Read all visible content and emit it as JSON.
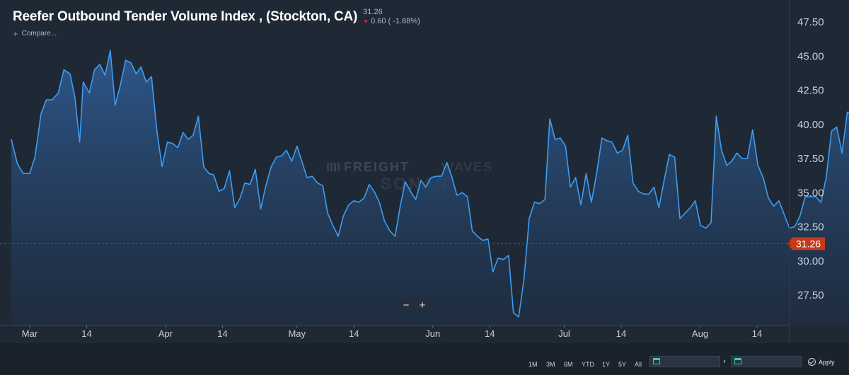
{
  "header": {
    "title": "Reefer Outbound Tender Volume Index , (Stockton, CA)",
    "last_value": "31.26",
    "change": "0.60 ( -1.88%)",
    "compare_label": "Compare..."
  },
  "watermark": {
    "line1_bold": "FREIGHT",
    "line1_light": "WAVES",
    "line2": "SONAR"
  },
  "zoom": {
    "minus": "−",
    "plus": "+"
  },
  "toolbar": {
    "ranges": [
      "1M",
      "3M",
      "6M",
      "YTD",
      "1Y",
      "5Y",
      "All"
    ],
    "arrow": "›",
    "apply_label": "Apply"
  },
  "colors": {
    "line": "#3d9df3",
    "last_price": "#c53a1a",
    "background": "#1f2936"
  },
  "chart_data": {
    "type": "area",
    "title": "Reefer Outbound Tender Volume Index , (Stockton, CA)",
    "xlabel": "",
    "ylabel": "",
    "ylim": [
      25.8,
      48.5
    ],
    "yticks": [
      27.5,
      30.0,
      32.5,
      35.0,
      37.5,
      40.0,
      42.5,
      45.0,
      47.5
    ],
    "ytick_labels": [
      "27.50",
      "30.00",
      "32.50",
      "35.00",
      "37.50",
      "40.00",
      "42.50",
      "45.00",
      "47.50"
    ],
    "x_ticks": [
      {
        "label": "Mar",
        "day": 1
      },
      {
        "label": "14",
        "day": 14
      },
      {
        "label": "Apr",
        "day": 32
      },
      {
        "label": "14",
        "day": 45
      },
      {
        "label": "May",
        "day": 62
      },
      {
        "label": "14",
        "day": 75
      },
      {
        "label": "Jun",
        "day": 93
      },
      {
        "label": "14",
        "day": 106
      },
      {
        "label": "Jul",
        "day": 123
      },
      {
        "label": "14",
        "day": 136
      },
      {
        "label": "Aug",
        "day": 154
      },
      {
        "label": "14",
        "day": 167
      }
    ],
    "last_value": 31.26,
    "last_value_label": "31.26",
    "grid": false,
    "series": [
      {
        "name": "Reefer Outbound Tender Volume Index",
        "points": [
          [
            -3.2,
            38.9
          ],
          [
            -1.8,
            37.1
          ],
          [
            -0.5,
            36.4
          ],
          [
            1,
            36.4
          ],
          [
            2.2,
            37.6
          ],
          [
            3.6,
            40.8
          ],
          [
            4.8,
            41.8
          ],
          [
            6.1,
            41.8
          ],
          [
            7.5,
            42.3
          ],
          [
            8.8,
            44
          ],
          [
            10.2,
            43.7
          ],
          [
            11.3,
            42
          ],
          [
            12.4,
            38.7
          ],
          [
            13.2,
            43.1
          ],
          [
            14.6,
            42.3
          ],
          [
            15.8,
            44
          ],
          [
            17,
            44.4
          ],
          [
            18.2,
            43.6
          ],
          [
            19.4,
            45.4
          ],
          [
            20.5,
            41.4
          ],
          [
            21.7,
            42.9
          ],
          [
            22.9,
            44.7
          ],
          [
            24.1,
            44.5
          ],
          [
            25.3,
            43.7
          ],
          [
            26.4,
            44.2
          ],
          [
            27.6,
            43.1
          ],
          [
            28.8,
            43.5
          ],
          [
            30,
            39.6
          ],
          [
            31.2,
            36.9
          ],
          [
            32.4,
            38.7
          ],
          [
            33.6,
            38.6
          ],
          [
            34.8,
            38.3
          ],
          [
            36,
            39.4
          ],
          [
            37.2,
            38.9
          ],
          [
            38.3,
            39.2
          ],
          [
            39.5,
            40.6
          ],
          [
            40.7,
            36.9
          ],
          [
            41.9,
            36.4
          ],
          [
            43,
            36.3
          ],
          [
            44.2,
            35.1
          ],
          [
            45.4,
            35.3
          ],
          [
            46.6,
            36.6
          ],
          [
            47.8,
            33.9
          ],
          [
            49,
            34.6
          ],
          [
            50.1,
            35.7
          ],
          [
            51.3,
            35.6
          ],
          [
            52.5,
            36.7
          ],
          [
            53.7,
            33.8
          ],
          [
            54.9,
            35.5
          ],
          [
            56.1,
            36.9
          ],
          [
            57.3,
            37.6
          ],
          [
            58.5,
            37.7
          ],
          [
            59.6,
            38.1
          ],
          [
            60.8,
            37.3
          ],
          [
            62,
            38.4
          ],
          [
            63.2,
            37.2
          ],
          [
            64.3,
            36.1
          ],
          [
            65.5,
            36.2
          ],
          [
            66.7,
            35.7
          ],
          [
            67.9,
            35.5
          ],
          [
            69,
            33.5
          ],
          [
            70.2,
            32.6
          ],
          [
            71.4,
            31.8
          ],
          [
            72.6,
            33.3
          ],
          [
            73.8,
            34.1
          ],
          [
            75,
            34.4
          ],
          [
            76.1,
            34.3
          ],
          [
            77.3,
            34.6
          ],
          [
            78.5,
            35.6
          ],
          [
            79.6,
            35.1
          ],
          [
            80.8,
            34.3
          ],
          [
            82,
            32.9
          ],
          [
            83.2,
            32.2
          ],
          [
            84.4,
            31.8
          ],
          [
            85.5,
            33.9
          ],
          [
            86.7,
            35.8
          ],
          [
            87.9,
            35.1
          ],
          [
            89.1,
            34.5
          ],
          [
            90.3,
            35.9
          ],
          [
            91.4,
            35.4
          ],
          [
            92.6,
            36.1
          ],
          [
            93.8,
            36.2
          ],
          [
            95,
            36.2
          ],
          [
            96.2,
            37.2
          ],
          [
            97.3,
            36.2
          ],
          [
            98.5,
            34.8
          ],
          [
            99.7,
            35
          ],
          [
            100.9,
            34.7
          ],
          [
            102,
            32.2
          ],
          [
            103.2,
            31.8
          ],
          [
            104.4,
            31.5
          ],
          [
            105.6,
            31.6
          ],
          [
            106.7,
            29.2
          ],
          [
            107.9,
            30.2
          ],
          [
            109.1,
            30.1
          ],
          [
            110.3,
            30.4
          ],
          [
            111.4,
            26.2
          ],
          [
            112.6,
            25.9
          ],
          [
            113.8,
            28.6
          ],
          [
            115,
            33.1
          ],
          [
            116.2,
            34.3
          ],
          [
            117.4,
            34.2
          ],
          [
            118.6,
            34.5
          ],
          [
            119.7,
            40.4
          ],
          [
            120.9,
            38.9
          ],
          [
            122.1,
            39
          ],
          [
            123.3,
            38.4
          ],
          [
            124.4,
            35.4
          ],
          [
            125.6,
            36.1
          ],
          [
            126.8,
            34.1
          ],
          [
            128,
            36.4
          ],
          [
            129.2,
            34.3
          ],
          [
            130.4,
            36.4
          ],
          [
            131.6,
            39
          ],
          [
            132.8,
            38.8
          ],
          [
            133.9,
            38.7
          ],
          [
            135.1,
            37.9
          ],
          [
            136.3,
            38.1
          ],
          [
            137.5,
            39.2
          ],
          [
            138.7,
            35.7
          ],
          [
            139.9,
            35.1
          ],
          [
            141.1,
            34.9
          ],
          [
            142.3,
            34.9
          ],
          [
            143.5,
            35.4
          ],
          [
            144.6,
            33.9
          ],
          [
            145.8,
            35.9
          ],
          [
            147,
            37.8
          ],
          [
            148.2,
            37.6
          ],
          [
            149.4,
            33.1
          ],
          [
            150.6,
            33.5
          ],
          [
            151.8,
            33.9
          ],
          [
            152.9,
            34.4
          ],
          [
            154.1,
            32.6
          ],
          [
            155.3,
            32.4
          ],
          [
            156.5,
            32.8
          ],
          [
            157.7,
            40.6
          ],
          [
            158.9,
            38.1
          ],
          [
            160.1,
            37
          ],
          [
            161.2,
            37.3
          ],
          [
            162.4,
            37.9
          ],
          [
            163.6,
            37.5
          ],
          [
            164.8,
            37.5
          ],
          [
            166,
            39.6
          ],
          [
            167.2,
            37
          ],
          [
            168.4,
            36.1
          ],
          [
            169.6,
            34.6
          ],
          [
            170.8,
            34
          ],
          [
            172,
            34.4
          ],
          [
            173.2,
            33.4
          ],
          [
            174.4,
            32.4
          ],
          [
            175.6,
            32.5
          ],
          [
            176.8,
            33.3
          ],
          [
            178,
            34.7
          ],
          [
            179.2,
            34.7
          ],
          [
            180.4,
            34.7
          ],
          [
            181.6,
            34.3
          ],
          [
            182.8,
            36.1
          ],
          [
            184,
            39.5
          ],
          [
            185.2,
            39.8
          ],
          [
            186.4,
            37.9
          ],
          [
            187.6,
            40.9
          ],
          [
            188.8,
            40.7
          ],
          [
            190,
            40.9
          ],
          [
            191.2,
            38.6
          ],
          [
            192.4,
            36.3
          ],
          [
            193.6,
            36.9
          ],
          [
            194.8,
            40
          ],
          [
            196,
            37.5
          ],
          [
            197.2,
            37.6
          ],
          [
            198.4,
            37.5
          ],
          [
            199.6,
            36.9
          ],
          [
            200.8,
            38.6
          ],
          [
            202,
            36.3
          ],
          [
            203.2,
            33.3
          ],
          [
            204.4,
            31.6
          ],
          [
            205.6,
            31.7
          ],
          [
            206.8,
            31.8
          ],
          [
            208,
            31.26
          ]
        ]
      }
    ]
  }
}
